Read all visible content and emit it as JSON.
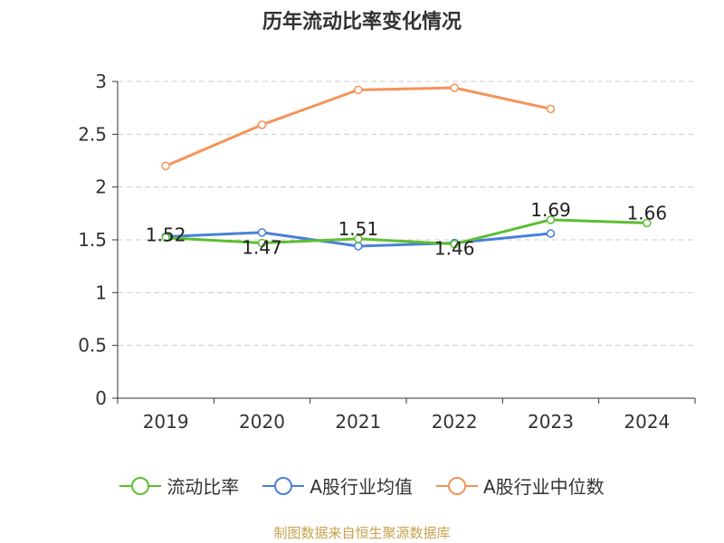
{
  "title": "历年流动比率变化情况",
  "source": "制图数据来自恒生聚源数据库",
  "colors": {
    "current_ratio": "#5bbf31",
    "industry_avg": "#4a7fd9",
    "industry_median": "#f5935a",
    "axis": "#333333",
    "grid": "#cccccc"
  },
  "chart_data": {
    "type": "line",
    "title": "历年流动比率变化情况",
    "xlabel": "",
    "ylabel": "",
    "ylim": [
      0,
      3
    ],
    "yticks": [
      "0",
      "0.5",
      "1",
      "1.5",
      "2",
      "2.5",
      "3"
    ],
    "categories": [
      "2019",
      "2020",
      "2021",
      "2022",
      "2023",
      "2024"
    ],
    "grid": true,
    "legend": "bottom",
    "series": [
      {
        "name": "流动比率",
        "color": "#5bbf31",
        "values": [
          1.52,
          1.47,
          1.51,
          1.46,
          1.69,
          1.66
        ],
        "labels": [
          "1.52",
          "1.47",
          "1.51",
          "1.46",
          "1.69",
          "1.66"
        ]
      },
      {
        "name": "A股行业均值",
        "color": "#4a7fd9",
        "values": [
          1.53,
          1.57,
          1.44,
          1.47,
          1.56,
          null
        ]
      },
      {
        "name": "A股行业中位数",
        "color": "#f5935a",
        "values": [
          2.2,
          2.59,
          2.92,
          2.94,
          2.74,
          null
        ]
      }
    ]
  }
}
